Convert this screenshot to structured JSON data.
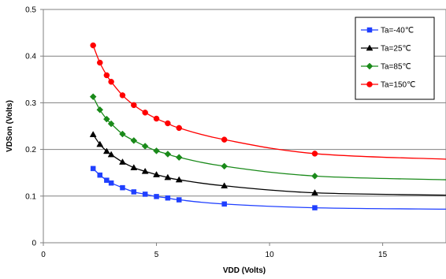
{
  "chart_data": {
    "type": "line",
    "title": "",
    "xlabel": "VDD (Volts)",
    "ylabel": "VDSon (Volts)",
    "xlim": [
      0,
      17.8
    ],
    "ylim": [
      0,
      0.5
    ],
    "x_ticks": [
      "0",
      "5",
      "10",
      "15"
    ],
    "y_ticks": [
      "0",
      "0.1",
      "0.2",
      "0.3",
      "0.4",
      "0.5"
    ],
    "grid": true,
    "legend_position": "top-right",
    "series": [
      {
        "name": "Ta=-40℃",
        "color": "#1f3fff",
        "marker": "square",
        "x": [
          2.2,
          2.5,
          2.8,
          3.0,
          3.5,
          4.0,
          4.5,
          5.0,
          5.5,
          6.0,
          8.0,
          12.0
        ],
        "y": [
          0.159,
          0.145,
          0.134,
          0.128,
          0.118,
          0.109,
          0.104,
          0.099,
          0.096,
          0.092,
          0.083,
          0.075
        ],
        "curve_x": [
          17.8
        ],
        "curve_y": [
          0.072
        ]
      },
      {
        "name": "Ta=25℃",
        "color": "#000000",
        "marker": "triangle",
        "x": [
          2.2,
          2.5,
          2.8,
          3.0,
          3.5,
          4.0,
          4.5,
          5.0,
          5.5,
          6.0,
          8.0,
          12.0
        ],
        "y": [
          0.232,
          0.211,
          0.196,
          0.189,
          0.173,
          0.161,
          0.153,
          0.146,
          0.14,
          0.135,
          0.122,
          0.107
        ],
        "curve_x": [
          17.8
        ],
        "curve_y": [
          0.102
        ]
      },
      {
        "name": "Ta=85℃",
        "color": "#1a8a1a",
        "marker": "diamond",
        "x": [
          2.2,
          2.5,
          2.8,
          3.0,
          3.5,
          4.0,
          4.5,
          5.0,
          5.5,
          6.0,
          8.0,
          12.0
        ],
        "y": [
          0.313,
          0.285,
          0.265,
          0.255,
          0.233,
          0.219,
          0.207,
          0.197,
          0.19,
          0.183,
          0.164,
          0.143
        ],
        "curve_x": [
          17.8
        ],
        "curve_y": [
          0.135
        ]
      },
      {
        "name": "Ta=150℃",
        "color": "#ff0000",
        "marker": "circle",
        "x": [
          2.2,
          2.5,
          2.8,
          3.0,
          3.5,
          4.0,
          4.5,
          5.0,
          5.5,
          6.0,
          8.0,
          12.0
        ],
        "y": [
          0.423,
          0.386,
          0.359,
          0.345,
          0.316,
          0.295,
          0.279,
          0.266,
          0.256,
          0.246,
          0.221,
          0.191
        ],
        "curve_x": [
          17.8
        ],
        "curve_y": [
          0.179
        ]
      }
    ]
  }
}
